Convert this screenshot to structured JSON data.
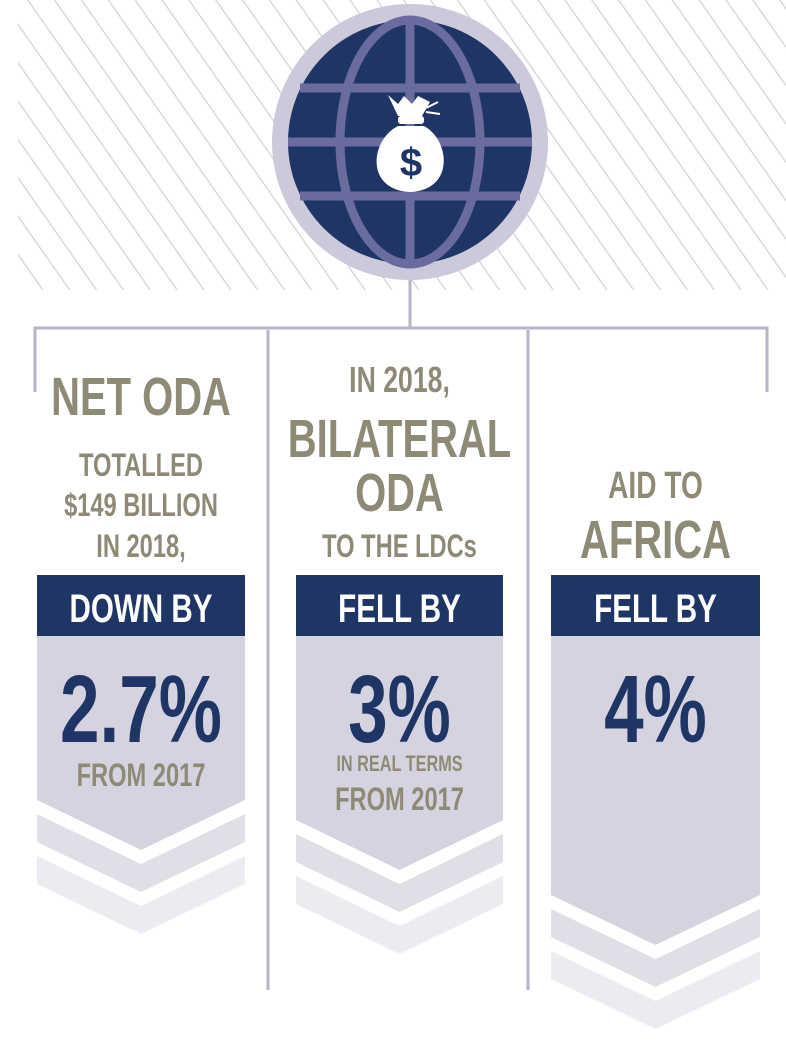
{
  "columns": [
    {
      "heading": [
        "NET ODA",
        "TOTALLED",
        "$149 BILLION",
        "IN 2018,"
      ],
      "banner": "DOWN BY",
      "value": "2.7%",
      "note": [
        "FROM 2017"
      ]
    },
    {
      "heading": [
        "IN 2018,",
        "BILATERAL",
        "ODA",
        "TO THE LDCs"
      ],
      "banner": "FELL BY",
      "value": "3%",
      "note": [
        "IN REAL TERMS",
        "FROM 2017"
      ]
    },
    {
      "heading": [
        "AID TO",
        "AFRICA"
      ],
      "banner": "FELL BY",
      "value": "4%",
      "note": []
    }
  ]
}
